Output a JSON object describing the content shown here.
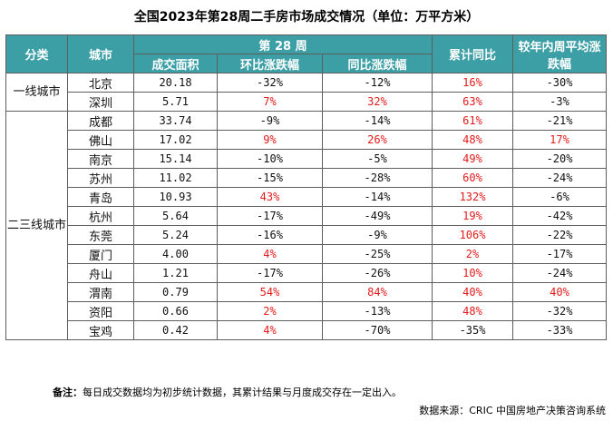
{
  "title": "全国2023年第28周二手房市场成交情况（单位：万平方米）",
  "headers": {
    "category": "分类",
    "city": "城市",
    "week": "第 28 周",
    "area": "成交面积",
    "mom": "环比涨跌幅",
    "yoy": "同比涨跌幅",
    "cumulative": "累计同比",
    "avg_compare": "较年内周平均涨跌幅"
  },
  "categories": {
    "tier1": "一线城市",
    "tier23": "二三线城市"
  },
  "rows": [
    {
      "city": "北京",
      "area": "20.18",
      "mom": "-32%",
      "yoy": "-12%",
      "cum": "16%",
      "avg": "-30%"
    },
    {
      "city": "深圳",
      "area": "5.71",
      "mom": "7%",
      "yoy": "32%",
      "cum": "63%",
      "avg": "-3%"
    },
    {
      "city": "成都",
      "area": "33.74",
      "mom": "-9%",
      "yoy": "-14%",
      "cum": "61%",
      "avg": "-21%"
    },
    {
      "city": "佛山",
      "area": "17.02",
      "mom": "9%",
      "yoy": "26%",
      "cum": "48%",
      "avg": "17%"
    },
    {
      "city": "南京",
      "area": "15.14",
      "mom": "-10%",
      "yoy": "-5%",
      "cum": "49%",
      "avg": "-20%"
    },
    {
      "city": "苏州",
      "area": "11.02",
      "mom": "-15%",
      "yoy": "-28%",
      "cum": "60%",
      "avg": "-24%"
    },
    {
      "city": "青岛",
      "area": "10.93",
      "mom": "43%",
      "yoy": "-14%",
      "cum": "132%",
      "avg": "-6%"
    },
    {
      "city": "杭州",
      "area": "5.64",
      "mom": "-17%",
      "yoy": "-49%",
      "cum": "19%",
      "avg": "-42%"
    },
    {
      "city": "东莞",
      "area": "5.24",
      "mom": "-16%",
      "yoy": "-9%",
      "cum": "106%",
      "avg": "-22%"
    },
    {
      "city": "厦门",
      "area": "4.00",
      "mom": "4%",
      "yoy": "-25%",
      "cum": "2%",
      "avg": "-17%"
    },
    {
      "city": "舟山",
      "area": "1.21",
      "mom": "-17%",
      "yoy": "-26%",
      "cum": "10%",
      "avg": "-24%"
    },
    {
      "city": "渭南",
      "area": "0.79",
      "mom": "54%",
      "yoy": "84%",
      "cum": "40%",
      "avg": "40%"
    },
    {
      "city": "资阳",
      "area": "0.66",
      "mom": "2%",
      "yoy": "-13%",
      "cum": "48%",
      "avg": "-32%"
    },
    {
      "city": "宝鸡",
      "area": "0.42",
      "mom": "4%",
      "yoy": "-70%",
      "cum": "-35%",
      "avg": "-33%"
    }
  ],
  "note_label": "备注：",
  "note_text": "每日成交数据均为初步统计数据，其累计结果与月度成交存在一定出入。",
  "source": "数据来源：CRIC 中国房地产决策咨询系统",
  "colors": {
    "header_bg": "#3c9fa6",
    "header_text": "#ffffff",
    "positive": "#e31b1b",
    "negative": "#111111"
  }
}
